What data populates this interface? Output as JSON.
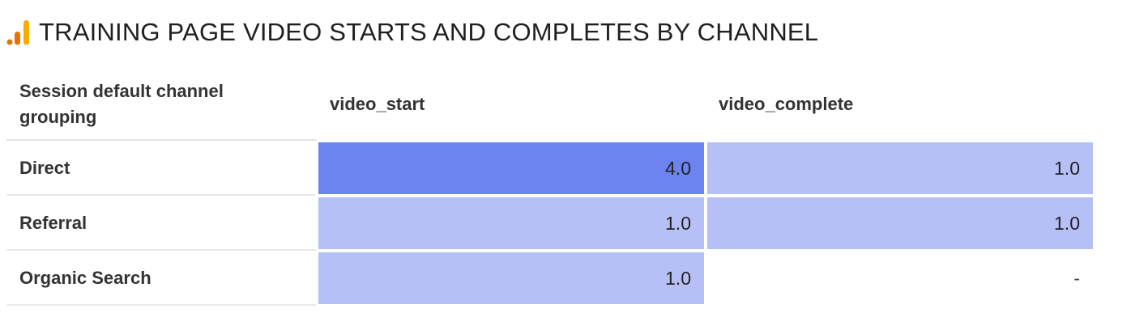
{
  "title": "TRAINING PAGE VIDEO STARTS AND COMPLETES BY CHANNEL",
  "icons": {
    "logo": "analytics-bar-chart-icon"
  },
  "colors": {
    "heat_high": "#6c83f0",
    "heat_low": "#b6c0f6",
    "heat_none": "#ffffff",
    "logo_dark": "#e37400",
    "logo_light": "#f9ab00"
  },
  "table": {
    "columns": [
      "Session default channel grouping",
      "video_start",
      "video_complete"
    ],
    "rows": [
      {
        "channel": "Direct",
        "video_start": "4.0",
        "video_complete": "1.0"
      },
      {
        "channel": "Referral",
        "video_start": "1.0",
        "video_complete": "1.0"
      },
      {
        "channel": "Organic Search",
        "video_start": "1.0",
        "video_complete": "-"
      }
    ]
  },
  "chart_data": {
    "type": "heatmap",
    "title": "TRAINING PAGE VIDEO STARTS AND COMPLETES BY CHANNEL",
    "row_header": "Session default channel grouping",
    "rows": [
      "Direct",
      "Referral",
      "Organic Search"
    ],
    "columns": [
      "video_start",
      "video_complete"
    ],
    "values": [
      [
        4.0,
        1.0
      ],
      [
        1.0,
        1.0
      ],
      [
        1.0,
        null
      ]
    ],
    "value_range": [
      1.0,
      4.0
    ]
  }
}
